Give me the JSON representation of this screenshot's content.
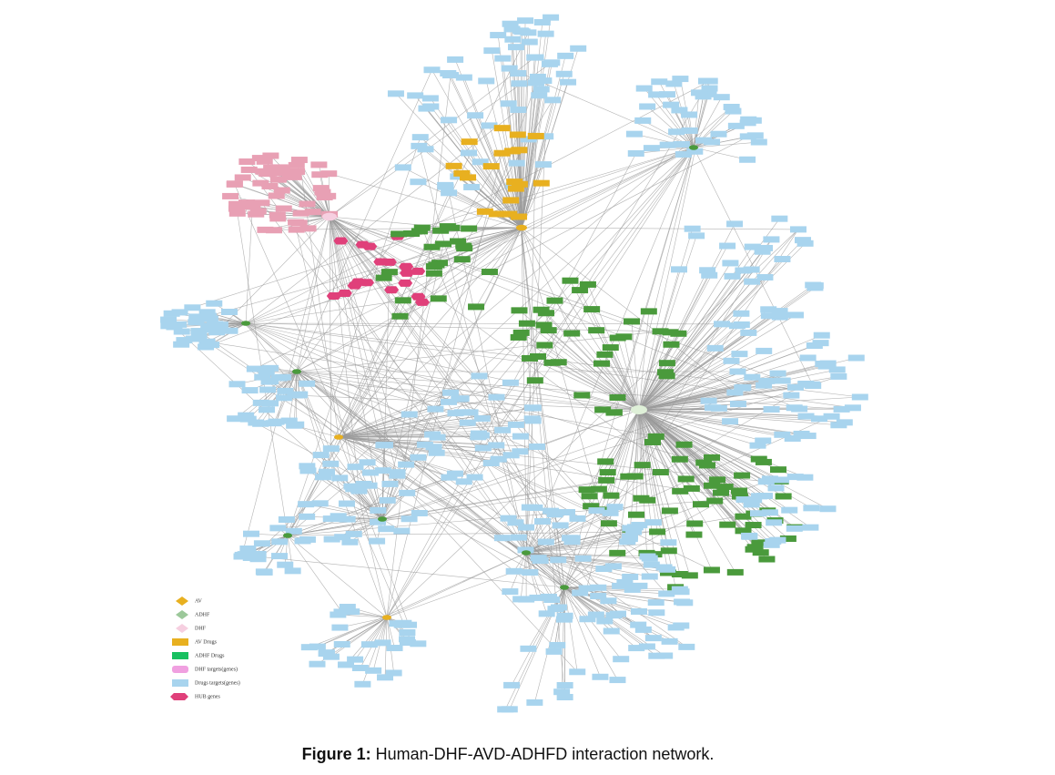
{
  "legend": [
    "AV",
    "ADHF",
    "DHF",
    "AV Drugs",
    "ADHF Drugs",
    "DHF targets(genes)",
    "Drugs targets(genes)",
    "HUB genes"
  ],
  "caption": {
    "label": "Figure 1:",
    "text": "Human-DHF-AVD-ADHFD interaction network."
  }
}
